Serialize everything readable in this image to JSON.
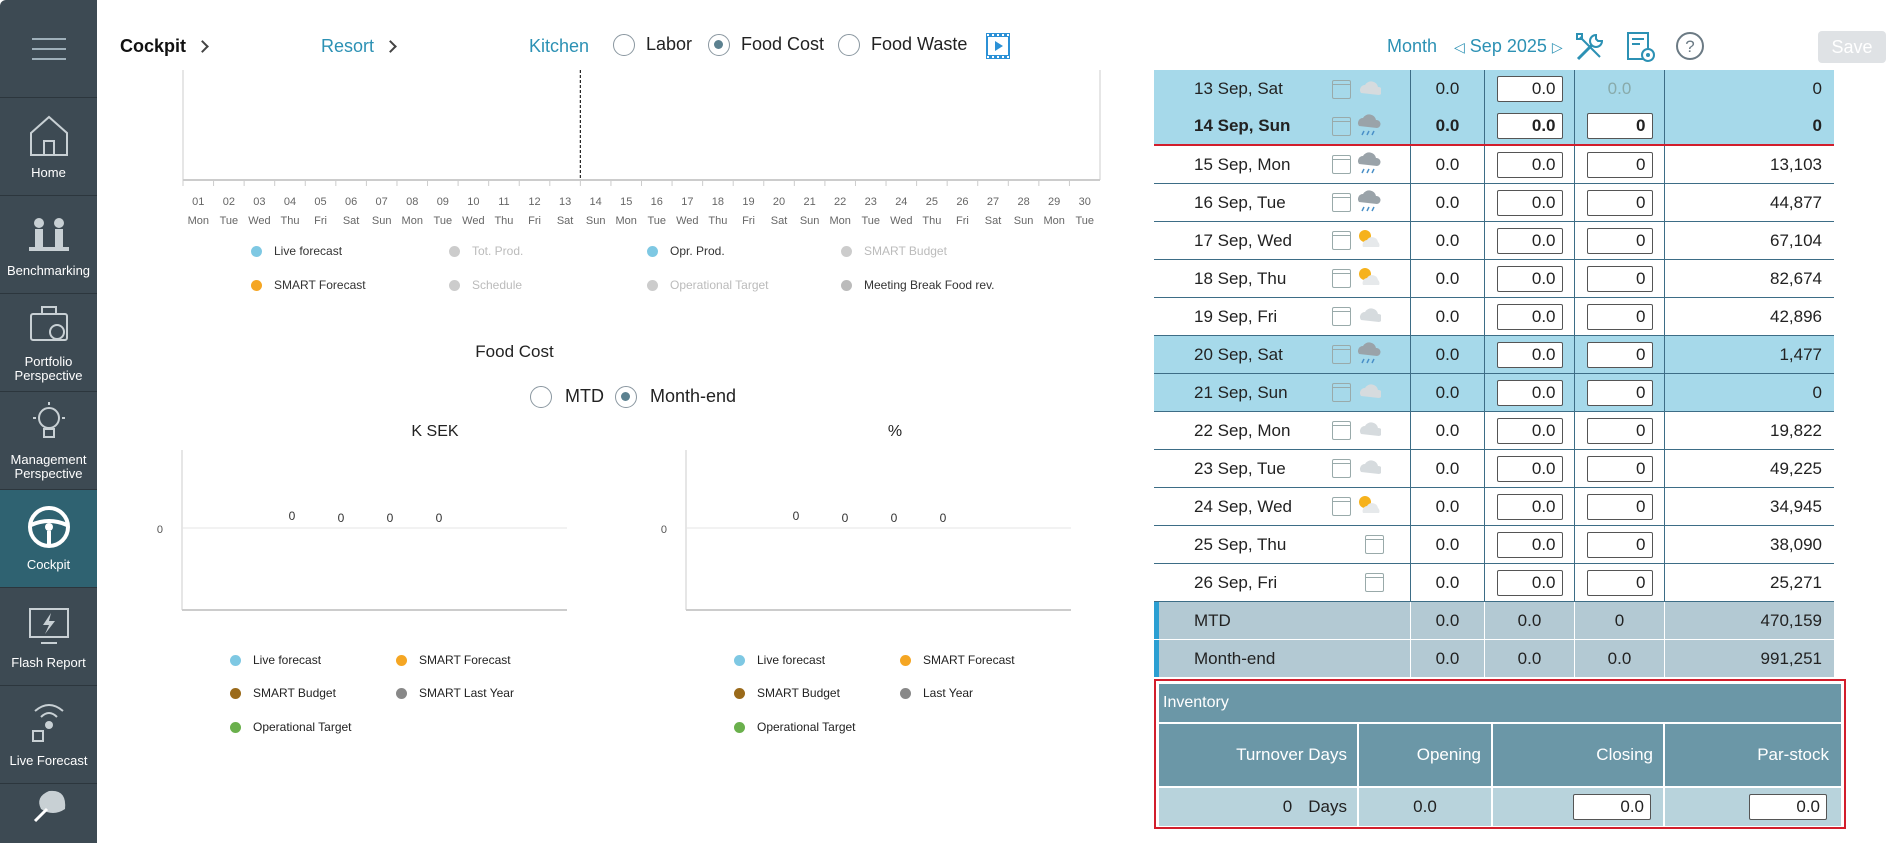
{
  "sidebar": {
    "items": [
      {
        "label": "Home",
        "icon": "home-icon"
      },
      {
        "label": "Benchmarking",
        "icon": "benchmarking-icon"
      },
      {
        "label": "Portfolio Perspective",
        "icon": "portfolio-icon"
      },
      {
        "label": "Management Perspective",
        "icon": "lightbulb-icon"
      },
      {
        "label": "Cockpit",
        "icon": "steering-wheel-icon",
        "active": true
      },
      {
        "label": "Flash Report",
        "icon": "flash-report-icon"
      },
      {
        "label": "Live Forecast",
        "icon": "live-forecast-icon"
      }
    ]
  },
  "topbar": {
    "crumb1": "Cockpit",
    "crumb2": "Resort",
    "crumb3": "Kitchen",
    "radios": [
      {
        "label": "Labor",
        "selected": false
      },
      {
        "label": "Food Cost",
        "selected": true
      },
      {
        "label": "Food Waste",
        "selected": false
      }
    ],
    "period": "Month",
    "month": "Sep 2025",
    "save_label": "Save"
  },
  "main_chart": {
    "days": [
      "01",
      "02",
      "03",
      "04",
      "05",
      "06",
      "07",
      "08",
      "09",
      "10",
      "11",
      "12",
      "13",
      "14",
      "15",
      "16",
      "17",
      "18",
      "19",
      "20",
      "21",
      "22",
      "23",
      "24",
      "25",
      "26",
      "27",
      "28",
      "29",
      "30"
    ],
    "weekdays": [
      "Mon",
      "Tue",
      "Wed",
      "Thu",
      "Fri",
      "Sat",
      "Sun",
      "Mon",
      "Tue",
      "Wed",
      "Thu",
      "Fri",
      "Sat",
      "Sun",
      "Mon",
      "Tue",
      "Wed",
      "Thu",
      "Fri",
      "Sat",
      "Sun",
      "Mon",
      "Tue",
      "Wed",
      "Thu",
      "Fri",
      "Sat",
      "Sun",
      "Mon",
      "Tue"
    ],
    "legend": [
      {
        "label": "Live forecast",
        "color": "#7ec8e3",
        "dim": false
      },
      {
        "label": "Tot. Prod.",
        "color": "#cccccc",
        "dim": true
      },
      {
        "label": "Opr. Prod.",
        "color": "#7ec8e3",
        "dim": false
      },
      {
        "label": "SMART Budget",
        "color": "#cccccc",
        "dim": true
      },
      {
        "label": "SMART Forecast",
        "color": "#f5a623",
        "dim": false
      },
      {
        "label": "Schedule",
        "color": "#cccccc",
        "dim": true
      },
      {
        "label": "Operational Target",
        "color": "#cccccc",
        "dim": true
      },
      {
        "label": "Meeting Break Food rev.",
        "color": "#bbbbbb",
        "dim": false
      }
    ]
  },
  "food_cost": {
    "title": "Food Cost",
    "radios": [
      {
        "label": "MTD",
        "selected": false
      },
      {
        "label": "Month-end",
        "selected": true
      }
    ]
  },
  "chart_data": [
    {
      "type": "bar",
      "title": "K SEK",
      "values": [
        0,
        0,
        0,
        0
      ],
      "ytick": "0",
      "series": [
        {
          "name": "Live forecast",
          "color": "#7ec8e3"
        },
        {
          "name": "SMART Forecast",
          "color": "#f5a623"
        },
        {
          "name": "SMART Budget",
          "color": "#9a6a1a"
        },
        {
          "name": "SMART Last Year",
          "color": "#888888"
        },
        {
          "name": "Operational Target",
          "color": "#6ab04c"
        }
      ]
    },
    {
      "type": "bar",
      "title": "%",
      "values": [
        0,
        0,
        0,
        0
      ],
      "ytick": "0",
      "series": [
        {
          "name": "Live forecast",
          "color": "#7ec8e3"
        },
        {
          "name": "SMART Forecast",
          "color": "#f5a623"
        },
        {
          "name": "SMART Budget",
          "color": "#9a6a1a"
        },
        {
          "name": "Last Year",
          "color": "#888888"
        },
        {
          "name": "Operational Target",
          "color": "#6ab04c"
        }
      ]
    }
  ],
  "day_table": {
    "rows": [
      {
        "date": "13 Sep, Sat",
        "weather": "cloud",
        "v1": "0.0",
        "in1": "0.0",
        "in2": "0.0",
        "v4": "0",
        "hl": true,
        "today": false,
        "in2_static": true
      },
      {
        "date": "14 Sep, Sun",
        "weather": "rain",
        "v1": "0.0",
        "in1": "0.0",
        "in2": "0",
        "v4": "0",
        "hl": true,
        "today": true
      },
      {
        "date": "15 Sep, Mon",
        "weather": "rain",
        "v1": "0.0",
        "in1": "0.0",
        "in2": "0",
        "v4": "13,103"
      },
      {
        "date": "16 Sep, Tue",
        "weather": "rain",
        "v1": "0.0",
        "in1": "0.0",
        "in2": "0",
        "v4": "44,877"
      },
      {
        "date": "17 Sep, Wed",
        "weather": "sun-cloud",
        "v1": "0.0",
        "in1": "0.0",
        "in2": "0",
        "v4": "67,104"
      },
      {
        "date": "18 Sep, Thu",
        "weather": "sun-cloud",
        "v1": "0.0",
        "in1": "0.0",
        "in2": "0",
        "v4": "82,674"
      },
      {
        "date": "19 Sep, Fri",
        "weather": "cloud",
        "v1": "0.0",
        "in1": "0.0",
        "in2": "0",
        "v4": "42,896"
      },
      {
        "date": "20 Sep, Sat",
        "weather": "rain",
        "v1": "0.0",
        "in1": "0.0",
        "in2": "0",
        "v4": "1,477",
        "hl": true
      },
      {
        "date": "21 Sep, Sun",
        "weather": "cloud",
        "v1": "0.0",
        "in1": "0.0",
        "in2": "0",
        "v4": "0",
        "hl": true
      },
      {
        "date": "22 Sep, Mon",
        "weather": "cloud",
        "v1": "0.0",
        "in1": "0.0",
        "in2": "0",
        "v4": "19,822"
      },
      {
        "date": "23 Sep, Tue",
        "weather": "cloud",
        "v1": "0.0",
        "in1": "0.0",
        "in2": "0",
        "v4": "49,225"
      },
      {
        "date": "24 Sep, Wed",
        "weather": "sun-cloud",
        "v1": "0.0",
        "in1": "0.0",
        "in2": "0",
        "v4": "34,945"
      },
      {
        "date": "25 Sep, Thu",
        "weather": "",
        "v1": "0.0",
        "in1": "0.0",
        "in2": "0",
        "v4": "38,090"
      },
      {
        "date": "26 Sep, Fri",
        "weather": "",
        "v1": "0.0",
        "in1": "0.0",
        "in2": "0",
        "v4": "25,271"
      }
    ],
    "summary": [
      {
        "label": "MTD",
        "v1": "0.0",
        "v2": "0.0",
        "v3": "0",
        "v4": "470,159"
      },
      {
        "label": "Month-end",
        "v1": "0.0",
        "v2": "0.0",
        "v3": "0.0",
        "v4": "991,251"
      }
    ]
  },
  "inventory": {
    "title": "Inventory",
    "cols": [
      "Turnover Days",
      "Opening",
      "Closing",
      "Par-stock"
    ],
    "turnover_value": "0",
    "turnover_unit": "Days",
    "opening": "0.0",
    "closing": "0.0",
    "par_stock": "0.0"
  }
}
